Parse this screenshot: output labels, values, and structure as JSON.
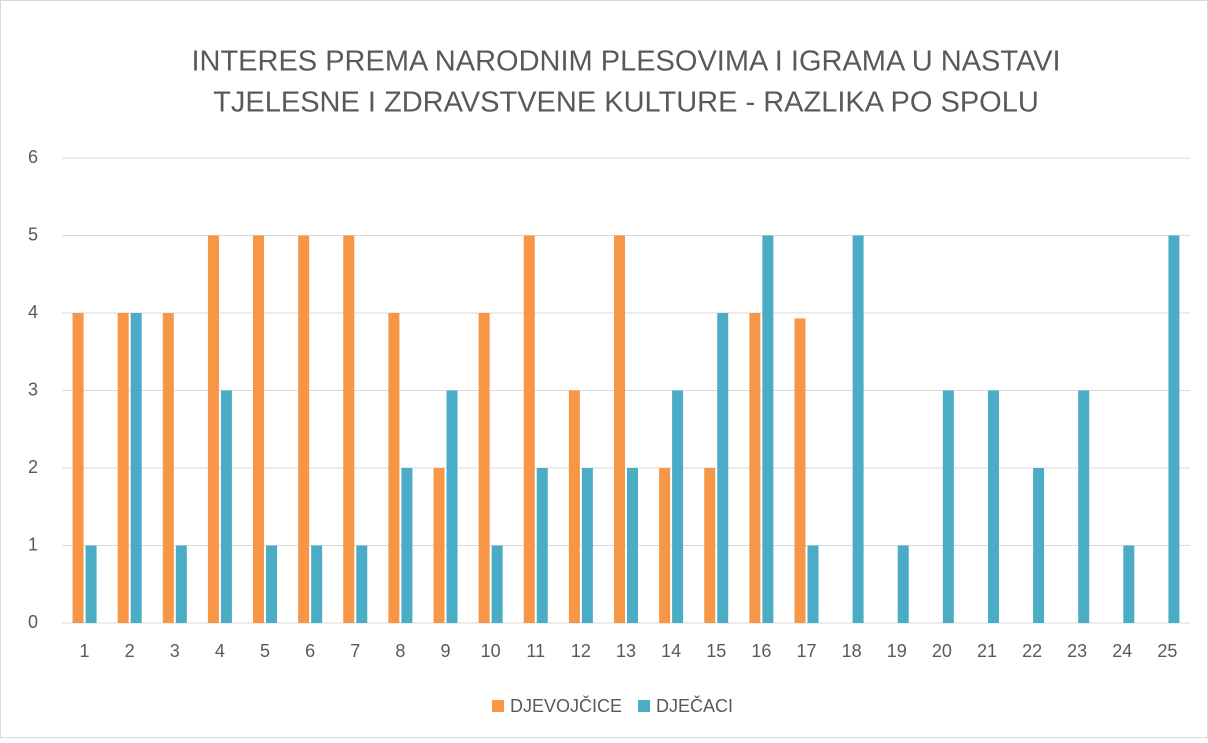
{
  "chart_data": {
    "type": "bar",
    "title": [
      "INTERES PREMA NARODNIM PLESOVIMA I IGRAMA U NASTAVI",
      "TJELESNE I ZDRAVSTVENE KULTURE - RAZLIKA PO SPOLU"
    ],
    "categories": [
      "1",
      "2",
      "3",
      "4",
      "5",
      "6",
      "7",
      "8",
      "9",
      "10",
      "11",
      "12",
      "13",
      "14",
      "15",
      "16",
      "17",
      "18",
      "19",
      "20",
      "21",
      "22",
      "23",
      "24",
      "25"
    ],
    "series": [
      {
        "name": "DJEVOJČICE",
        "color": "#f79646",
        "values": [
          4,
          4,
          4,
          5,
          5,
          5,
          5,
          4,
          2,
          4,
          5,
          3,
          5,
          2,
          2,
          4,
          3.93,
          null,
          null,
          null,
          null,
          null,
          null,
          null,
          null
        ]
      },
      {
        "name": "DJEČACI",
        "color": "#4bacc6",
        "values": [
          1,
          4,
          1,
          3,
          1,
          1,
          1,
          2,
          3,
          1,
          2,
          2,
          2,
          3,
          4,
          5,
          1,
          5,
          1,
          3,
          3,
          2,
          3,
          1,
          5
        ]
      }
    ],
    "ylim": [
      0,
      6
    ],
    "yticks": [
      0,
      1,
      2,
      3,
      4,
      5,
      6
    ],
    "grid": true,
    "legend": "bottom"
  }
}
